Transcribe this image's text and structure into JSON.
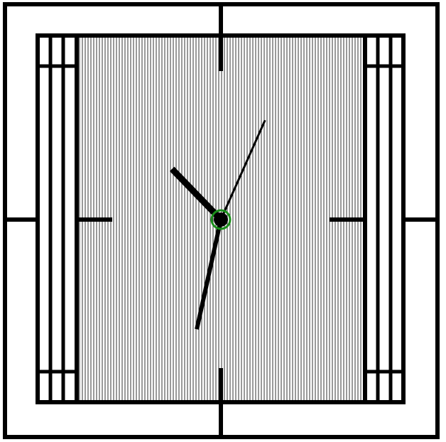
{
  "clock": {
    "time": {
      "hours": 10,
      "minutes": 32,
      "seconds": 4
    },
    "colors": {
      "frame": "#000000",
      "background": "#ffffff",
      "hands": "#000000",
      "center_ring": "#1a8f1a"
    },
    "icons": {
      "face": "square-clock-face-icon",
      "hour_hand": "hour-hand-icon",
      "minute_hand": "minute-hand-icon",
      "second_hand": "second-hand-icon"
    }
  }
}
